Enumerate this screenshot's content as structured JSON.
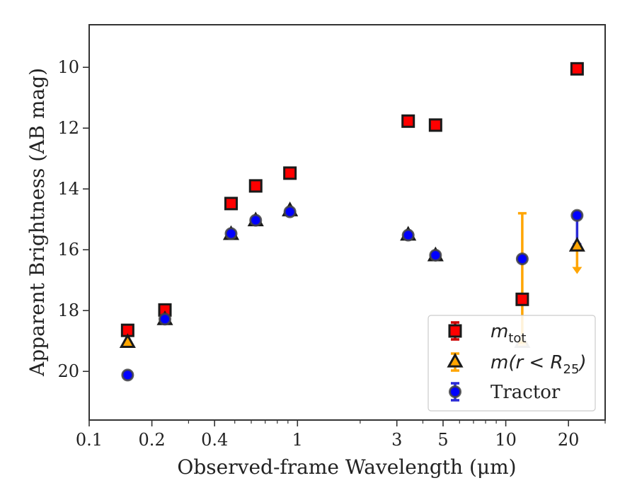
{
  "chart_data": {
    "type": "scatter",
    "xscale": "log",
    "xlim": [
      0.1,
      30
    ],
    "ylim": [
      21.6,
      8.6
    ],
    "y_inverted": true,
    "xlabel": "Observed-frame Wavelength (μm)",
    "ylabel": "Apparent Brightness (AB mag)",
    "xticks": [
      {
        "value": 0.1,
        "label": "0.1"
      },
      {
        "value": 0.2,
        "label": "0.2"
      },
      {
        "value": 0.4,
        "label": "0.4"
      },
      {
        "value": 1,
        "label": "1"
      },
      {
        "value": 3,
        "label": "3"
      },
      {
        "value": 5,
        "label": "5"
      },
      {
        "value": 10,
        "label": "10"
      },
      {
        "value": 20,
        "label": "20"
      }
    ],
    "yticks": [
      10,
      12,
      14,
      16,
      18,
      20
    ],
    "legend_position": "lower right",
    "grid": false,
    "series": [
      {
        "name": "m_tot",
        "label_main": "m",
        "label_sub": "tot",
        "marker": "square",
        "color": "#ff0000",
        "error_color": "#cc0000",
        "points": [
          {
            "x": 0.153,
            "y": 18.65
          },
          {
            "x": 0.231,
            "y": 17.98
          },
          {
            "x": 0.48,
            "y": 14.48
          },
          {
            "x": 0.63,
            "y": 13.9
          },
          {
            "x": 0.92,
            "y": 13.48
          },
          {
            "x": 3.4,
            "y": 11.77
          },
          {
            "x": 4.6,
            "y": 11.9
          },
          {
            "x": 12,
            "y": 17.63
          },
          {
            "x": 22,
            "y": 10.05
          }
        ]
      },
      {
        "name": "m(r < R_25)",
        "label_main": "m(r < R",
        "label_sub": "25",
        "label_end": ")",
        "marker": "triangle",
        "color": "#ffa500",
        "error_color": "#ffa500",
        "points": [
          {
            "x": 0.153,
            "y": 19.05
          },
          {
            "x": 0.231,
            "y": 18.3
          },
          {
            "x": 0.48,
            "y": 15.5
          },
          {
            "x": 0.63,
            "y": 15.05
          },
          {
            "x": 0.92,
            "y": 14.72
          },
          {
            "x": 3.4,
            "y": 15.52
          },
          {
            "x": 4.6,
            "y": 16.2
          },
          {
            "x": 12,
            "y": 19.05,
            "yerr": [
              4.25,
              0
            ],
            "faded": true
          },
          {
            "x": 22,
            "y": 15.88,
            "upper_limit_to": 16.75
          }
        ]
      },
      {
        "name": "Tractor",
        "label_main": "Tractor",
        "marker": "circle",
        "color": "#0000ff",
        "error_color": "#2a2ad6",
        "points": [
          {
            "x": 0.153,
            "y": 20.12
          },
          {
            "x": 0.231,
            "y": 18.28
          },
          {
            "x": 0.48,
            "y": 15.47
          },
          {
            "x": 0.63,
            "y": 15.03
          },
          {
            "x": 0.92,
            "y": 14.75
          },
          {
            "x": 3.4,
            "y": 15.52
          },
          {
            "x": 4.6,
            "y": 16.18
          },
          {
            "x": 12,
            "y": 16.3
          },
          {
            "x": 22,
            "y": 14.87,
            "yerr": [
              0,
              0.95
            ]
          }
        ]
      }
    ]
  }
}
